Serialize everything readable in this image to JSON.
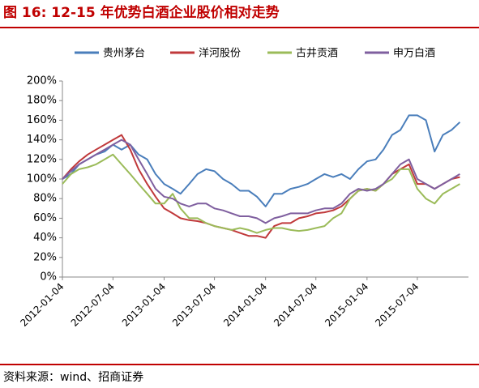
{
  "chart_data": {
    "type": "line",
    "title": "图 16:  12-15 年优势白酒企业股价相对走势",
    "source": "资料来源：wind、招商证券",
    "x": [
      "2012-01-04",
      "2012-02-04",
      "2012-03-04",
      "2012-04-04",
      "2012-05-04",
      "2012-06-04",
      "2012-07-04",
      "2012-08-04",
      "2012-09-04",
      "2012-10-04",
      "2012-11-04",
      "2012-12-04",
      "2013-01-04",
      "2013-02-04",
      "2013-03-04",
      "2013-04-04",
      "2013-05-04",
      "2013-06-04",
      "2013-07-04",
      "2013-08-04",
      "2013-09-04",
      "2013-10-04",
      "2013-11-04",
      "2013-12-04",
      "2014-01-04",
      "2014-02-04",
      "2014-03-04",
      "2014-04-04",
      "2014-05-04",
      "2014-06-04",
      "2014-07-04",
      "2014-08-04",
      "2014-09-04",
      "2014-10-04",
      "2014-11-04",
      "2014-12-04",
      "2015-01-04",
      "2015-02-04",
      "2015-03-04",
      "2015-04-04",
      "2015-05-04",
      "2015-06-04",
      "2015-07-04",
      "2015-08-04",
      "2015-09-04",
      "2015-10-04",
      "2015-11-04",
      "2015-12-04"
    ],
    "series": [
      {
        "name": "贵州茅台",
        "color": "#4a7ebb",
        "values": [
          100,
          105,
          115,
          120,
          125,
          128,
          135,
          130,
          135,
          125,
          120,
          105,
          95,
          90,
          85,
          95,
          105,
          110,
          108,
          100,
          95,
          88,
          88,
          82,
          72,
          85,
          85,
          90,
          92,
          95,
          100,
          105,
          102,
          105,
          100,
          110,
          118,
          120,
          130,
          145,
          150,
          165,
          165,
          160,
          128,
          145,
          150,
          158
        ]
      },
      {
        "name": "洋河股份",
        "color": "#c0393b",
        "values": [
          100,
          110,
          118,
          125,
          130,
          135,
          140,
          145,
          130,
          110,
          95,
          82,
          70,
          65,
          60,
          58,
          57,
          55,
          52,
          50,
          48,
          45,
          42,
          42,
          40,
          52,
          55,
          55,
          60,
          62,
          65,
          66,
          68,
          72,
          80,
          88,
          90,
          88,
          95,
          105,
          110,
          115,
          95,
          95,
          90,
          95,
          100,
          102
        ]
      },
      {
        "name": "古井贡酒",
        "color": "#9bbb59",
        "values": [
          95,
          105,
          110,
          112,
          115,
          120,
          125,
          115,
          105,
          95,
          85,
          75,
          75,
          85,
          70,
          60,
          60,
          55,
          52,
          50,
          48,
          50,
          48,
          45,
          48,
          50,
          50,
          48,
          47,
          48,
          50,
          52,
          60,
          65,
          80,
          88,
          90,
          88,
          95,
          100,
          110,
          110,
          90,
          80,
          75,
          85,
          90,
          95
        ]
      },
      {
        "name": "申万白酒",
        "color": "#7f5f9f",
        "values": [
          100,
          108,
          115,
          120,
          125,
          130,
          135,
          140,
          135,
          120,
          105,
          90,
          82,
          80,
          75,
          72,
          75,
          75,
          70,
          68,
          65,
          62,
          62,
          60,
          55,
          60,
          62,
          65,
          65,
          65,
          68,
          70,
          70,
          75,
          85,
          90,
          88,
          90,
          95,
          105,
          115,
          120,
          100,
          95,
          90,
          95,
          100,
          105
        ]
      }
    ],
    "xlim": [
      "2012-01-04",
      "2016-01-04"
    ],
    "xticks": [
      "2012-01-04",
      "2012-07-04",
      "2013-01-04",
      "2013-07-04",
      "2014-01-04",
      "2014-07-04",
      "2015-01-04",
      "2015-07-04"
    ],
    "ylim": [
      0,
      200
    ],
    "yticks": [
      {
        "value": 0,
        "label": "0%"
      },
      {
        "value": 20,
        "label": "20%"
      },
      {
        "value": 40,
        "label": "40%"
      },
      {
        "value": 60,
        "label": "60%"
      },
      {
        "value": 80,
        "label": "80%"
      },
      {
        "value": 100,
        "label": "100%"
      },
      {
        "value": 120,
        "label": "120%"
      },
      {
        "value": 140,
        "label": "140%"
      },
      {
        "value": 160,
        "label": "160%"
      },
      {
        "value": 180,
        "label": "180%"
      },
      {
        "value": 200,
        "label": "200%"
      }
    ],
    "grid": false,
    "legend": "top"
  }
}
